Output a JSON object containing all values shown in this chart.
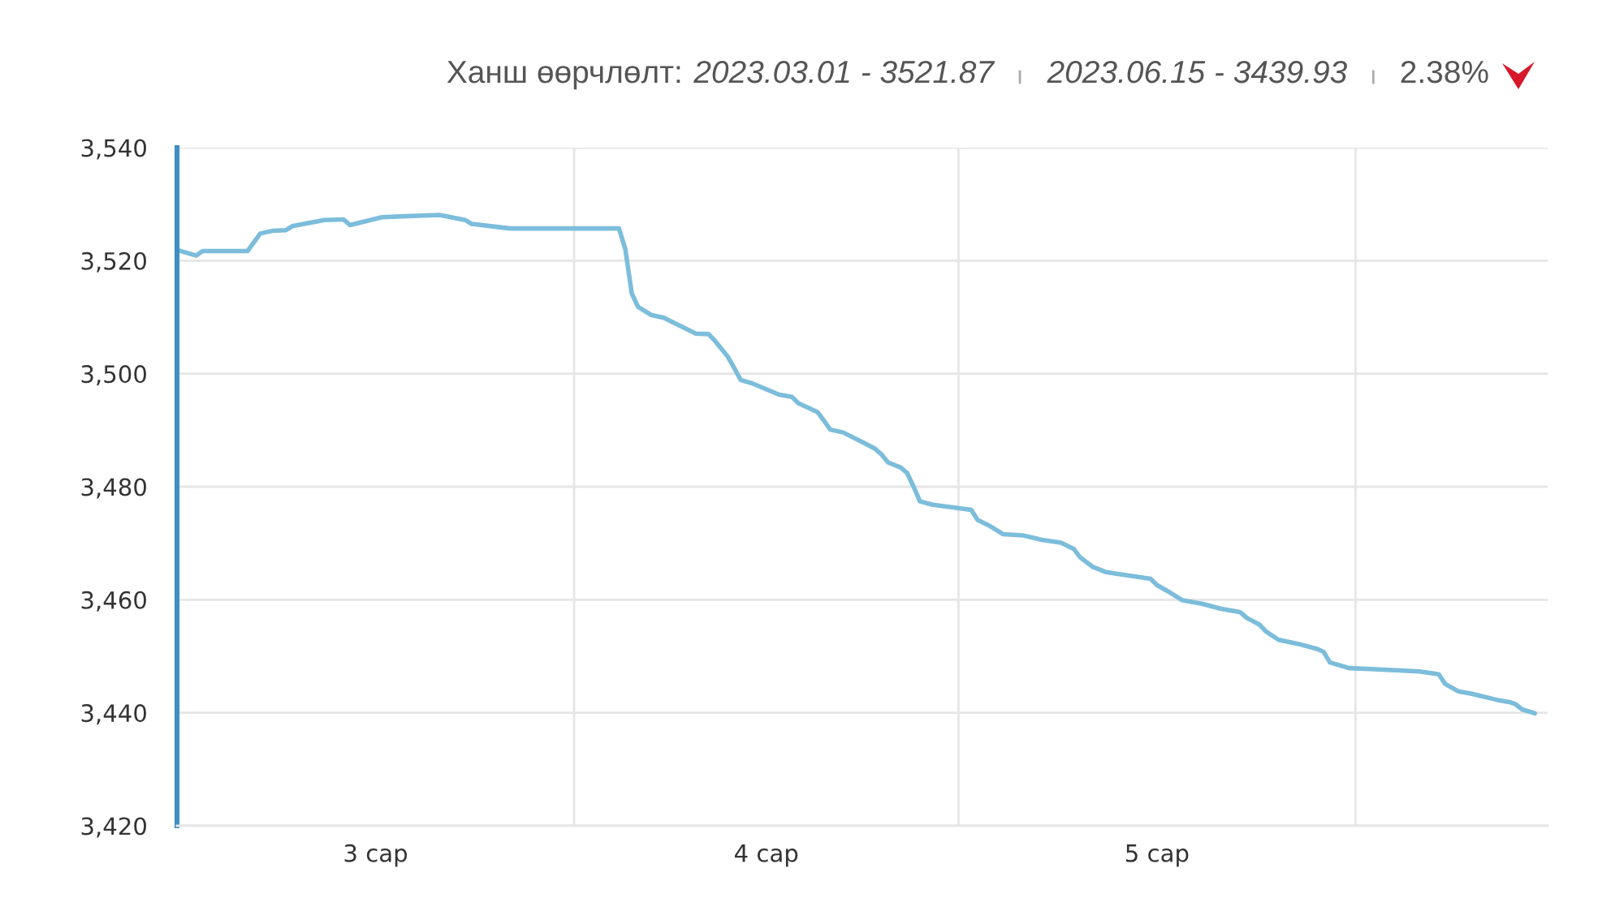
{
  "chart_data": {
    "type": "line",
    "title": "Ханш өөрчлөлт:",
    "annotations": [
      "2023.03.01 - 3521.87",
      "2023.06.15 - 3439.93",
      "2.38%"
    ],
    "x": [
      "2023-03-01",
      "2023-03-02T12:00",
      "2023-03-03",
      "2023-03-06T12:00",
      "2023-03-07T12:00",
      "2023-03-08T12:00",
      "2023-03-09T12:00",
      "2023-03-10",
      "2023-03-12T12:00",
      "2023-03-14",
      "2023-03-14T12:00",
      "2023-03-17",
      "2023-03-21T12:00",
      "2023-03-23T12:00",
      "2023-03-24",
      "2023-03-27",
      "2023-04-04T12:00",
      "2023-04-05",
      "2023-04-05T12:00",
      "2023-04-06",
      "2023-04-07",
      "2023-04-08",
      "2023-04-10T12:00",
      "2023-04-11T12:00",
      "2023-04-12",
      "2023-04-13",
      "2023-04-13T12:00",
      "2023-04-14",
      "2023-04-15",
      "2023-04-17",
      "2023-04-18",
      "2023-04-18T12:00",
      "2023-04-20",
      "2023-04-20T12:00",
      "2023-04-21",
      "2023-04-22",
      "2023-04-23T12:00",
      "2023-04-24T12:00",
      "2023-04-25",
      "2023-04-25T12:00",
      "2023-04-26T12:00",
      "2023-04-27",
      "2023-04-27T12:00",
      "2023-04-28",
      "2023-04-29",
      "2023-05-02",
      "2023-05-02T12:00",
      "2023-05-03T12:00",
      "2023-05-04T12:00",
      "2023-05-06",
      "2023-05-07T12:00",
      "2023-05-09",
      "2023-05-10",
      "2023-05-10T12:00",
      "2023-05-11T12:00",
      "2023-05-12T12:00",
      "2023-05-14T12:00",
      "2023-05-16",
      "2023-05-16T12:00",
      "2023-05-17T12:00",
      "2023-05-18T12:00",
      "2023-05-20",
      "2023-05-21T12:00",
      "2023-05-23",
      "2023-05-23T12:00",
      "2023-05-24T12:00",
      "2023-05-25",
      "2023-05-26",
      "2023-05-27T12:00",
      "2023-05-29",
      "2023-05-29T12:00",
      "2023-05-30",
      "2023-05-31T12:00",
      "2023-06-02T12:00",
      "2023-06-06",
      "2023-06-07T12:00",
      "2023-06-08",
      "2023-06-09",
      "2023-06-10",
      "2023-06-12",
      "2023-06-13",
      "2023-06-13T12:00",
      "2023-06-14",
      "2023-06-15"
    ],
    "series": [
      {
        "color": "#7cbddb",
        "values": [
          3521.9,
          3520.9,
          3521.7,
          3521.7,
          3524.8,
          3525.3,
          3525.4,
          3526.1,
          3527.2,
          3527.3,
          3526.3,
          3527.7,
          3528.1,
          3527.2,
          3526.5,
          3525.7,
          3525.7,
          3522.0,
          3514.2,
          3511.8,
          3510.4,
          3509.9,
          3507.1,
          3507.0,
          3505.8,
          3503.0,
          3501.0,
          3498.9,
          3498.2,
          3496.3,
          3495.9,
          3494.8,
          3493.2,
          3491.7,
          3490.1,
          3489.6,
          3487.9,
          3486.7,
          3485.7,
          3484.3,
          3483.4,
          3482.4,
          3480.0,
          3477.4,
          3476.8,
          3475.9,
          3474.1,
          3473.0,
          3471.6,
          3471.4,
          3470.6,
          3470.1,
          3469.0,
          3467.5,
          3465.8,
          3464.9,
          3464.2,
          3463.7,
          3462.6,
          3461.3,
          3459.9,
          3459.3,
          3458.4,
          3457.8,
          3456.8,
          3455.6,
          3454.4,
          3452.9,
          3452.2,
          3451.3,
          3450.8,
          3448.9,
          3447.9,
          3447.7,
          3447.3,
          3446.8,
          3445.1,
          3443.8,
          3443.4,
          3442.3,
          3441.9,
          3441.5,
          3440.6,
          3439.9
        ]
      }
    ],
    "xlim": [
      "2023-03-01",
      "2023-06-16"
    ],
    "xticks": [
      {
        "value": "2023-03-16T12:00",
        "label": "3 сар"
      },
      {
        "value": "2023-04-01",
        "label": null
      },
      {
        "value": "2023-04-16",
        "label": "4 сар"
      },
      {
        "value": "2023-05-01",
        "label": null
      },
      {
        "value": "2023-05-16T12:00",
        "label": "5 сар"
      },
      {
        "value": "2023-06-01",
        "label": null
      }
    ],
    "ylim": [
      3420,
      3540
    ],
    "yticks": [
      {
        "value": 3420,
        "label": "3,420"
      },
      {
        "value": 3440,
        "label": "3,440"
      },
      {
        "value": 3460,
        "label": "3,460"
      },
      {
        "value": 3480,
        "label": "3,480"
      },
      {
        "value": 3500,
        "label": "3,500"
      },
      {
        "value": 3520,
        "label": "3,520"
      },
      {
        "value": 3540,
        "label": "3,540"
      }
    ],
    "grid": true,
    "line_style": "solid"
  }
}
